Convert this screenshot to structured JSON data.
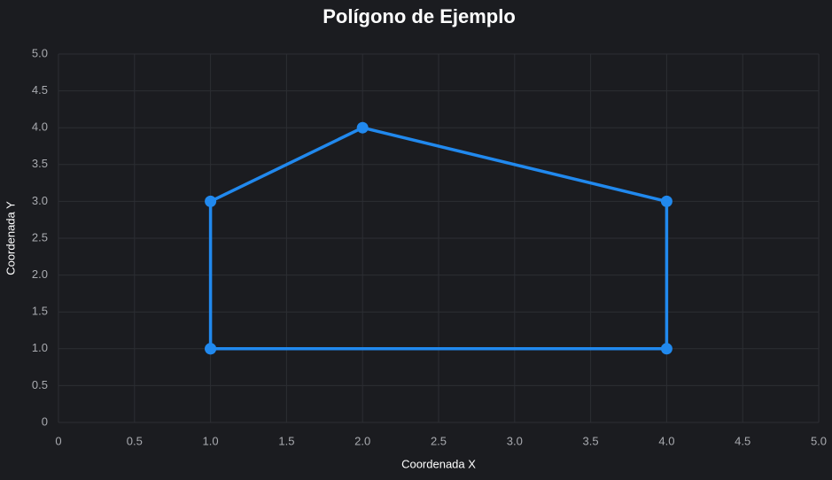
{
  "chart_data": {
    "type": "line",
    "title": "Polígono de Ejemplo",
    "x_label": "Coordenada X",
    "y_label": "Coordenada Y",
    "x": [
      1,
      1,
      2,
      4,
      4,
      1
    ],
    "values": [
      1,
      3,
      4,
      3,
      1,
      1
    ],
    "color": "#2189ee",
    "xlim": [
      0,
      5
    ],
    "ylim": [
      0,
      5
    ],
    "xticks": [
      0,
      0.5,
      {
        "value": 1,
        "label": "1.0"
      },
      1.5,
      {
        "value": 2,
        "label": "2.0"
      },
      2.5,
      {
        "value": 3,
        "label": "3.0"
      },
      3.5,
      {
        "value": 4,
        "label": "4.0"
      },
      4.5,
      {
        "value": 5,
        "label": "5.0"
      }
    ],
    "yticks": [
      0,
      0.5,
      {
        "value": 1,
        "label": "1.0"
      },
      1.5,
      {
        "value": 2,
        "label": "2.0"
      },
      2.5,
      {
        "value": 3,
        "label": "3.0"
      },
      3.5,
      {
        "value": 4,
        "label": "4.0"
      },
      4.5,
      {
        "value": 5,
        "label": "5.0"
      }
    ],
    "grid": true
  }
}
